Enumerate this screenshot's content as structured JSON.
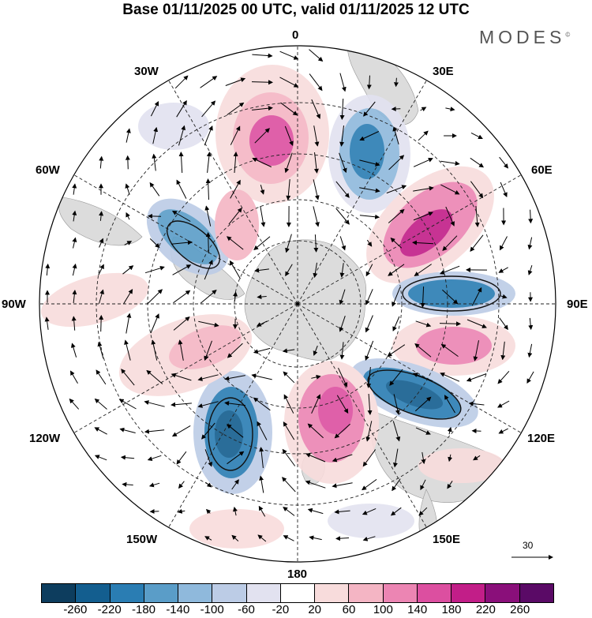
{
  "title": "Base 01/11/2025 00 UTC, valid 01/11/2025 12 UTC",
  "brand": "MODES",
  "brand_mark": "©",
  "longitude_labels": [
    {
      "id": "lon-0",
      "text": "0"
    },
    {
      "id": "lon-30e",
      "text": "30E"
    },
    {
      "id": "lon-60e",
      "text": "60E"
    },
    {
      "id": "lon-90e",
      "text": "90E"
    },
    {
      "id": "lon-120e",
      "text": "120E"
    },
    {
      "id": "lon-150e",
      "text": "150E"
    },
    {
      "id": "lon-180",
      "text": "180"
    },
    {
      "id": "lon-150w",
      "text": "150W"
    },
    {
      "id": "lon-120w",
      "text": "120W"
    },
    {
      "id": "lon-90w",
      "text": "90W"
    },
    {
      "id": "lon-60w",
      "text": "60W"
    },
    {
      "id": "lon-30w",
      "text": "30W"
    }
  ],
  "reference_vector": {
    "value": "30"
  },
  "colorbar": {
    "ticks": [
      "-260",
      "-220",
      "-180",
      "-140",
      "-100",
      "-60",
      "-20",
      "20",
      "60",
      "100",
      "140",
      "180",
      "220",
      "260"
    ],
    "colors": [
      "#0d3d5e",
      "#135e8f",
      "#2a7db3",
      "#5a9dc8",
      "#8fb9dc",
      "#bccce6",
      "#e2e2f0",
      "#ffffff",
      "#f8dcdc",
      "#f4b5c4",
      "#ec85b3",
      "#dc4fa0",
      "#c21e88",
      "#8a0f7a",
      "#5a0a66"
    ]
  },
  "chart_data": {
    "type": "polar-stereographic-map",
    "projection": "south-polar-stereographic",
    "field": "anomaly (shaded) with wind vectors (arrows)",
    "base_time": "01/11/2025 00 UTC",
    "valid_time": "01/11/2025 12 UTC",
    "color_levels": [
      -260,
      -220,
      -180,
      -140,
      -100,
      -60,
      -20,
      20,
      60,
      100,
      140,
      180,
      220,
      260
    ],
    "reference_vector": 30,
    "anomaly_centers": [
      {
        "lon_label": "20W",
        "sign": "positive",
        "peak_level": 180
      },
      {
        "lon_label": "20E",
        "sign": "negative",
        "peak_level": -140
      },
      {
        "lon_label": "60E",
        "sign": "positive",
        "peak_level": 220
      },
      {
        "lon_label": "90E",
        "sign": "negative",
        "peak_level": -180
      },
      {
        "lon_label": "110E",
        "sign": "positive",
        "peak_level": 140
      },
      {
        "lon_label": "130E",
        "sign": "negative",
        "peak_level": -220
      },
      {
        "lon_label": "170E",
        "sign": "positive",
        "peak_level": 180
      },
      {
        "lon_label": "150W",
        "sign": "negative",
        "peak_level": -220
      },
      {
        "lon_label": "110W",
        "sign": "positive",
        "peak_level": 100
      },
      {
        "lon_label": "60W",
        "sign": "negative",
        "peak_level": -180
      },
      {
        "lon_label": "45W",
        "sign": "positive",
        "peak_level": 100
      }
    ]
  }
}
